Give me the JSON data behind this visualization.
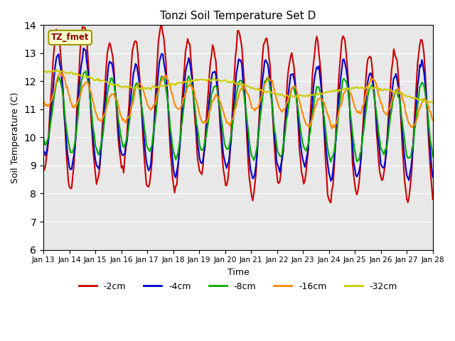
{
  "title": "Tonzi Soil Temperature Set D",
  "xlabel": "Time",
  "ylabel": "Soil Temperature (C)",
  "ylim": [
    6.0,
    14.0
  ],
  "yticks": [
    6.0,
    7.0,
    8.0,
    9.0,
    10.0,
    11.0,
    12.0,
    13.0,
    14.0
  ],
  "bg_color": "#e8e8e8",
  "legend_label": "TZ_fmet",
  "series_names": [
    "-2cm",
    "-4cm",
    "-8cm",
    "-16cm",
    "-32cm"
  ],
  "series_colors": [
    "#cc0000",
    "#0000cc",
    "#00aa00",
    "#ff8800",
    "#cccc00"
  ],
  "series_lw": [
    1.5,
    1.5,
    1.5,
    1.5,
    1.5
  ],
  "xtick_labels": [
    "Jan 13",
    "Jan 14",
    "Jan 15",
    "Jan 16",
    "Jan 17",
    "Jan 18",
    "Jan 19",
    "Jan 20",
    "Jan 21",
    "Jan 22",
    "Jan 23",
    "Jan 24",
    "Jan 25",
    "Jan 26",
    "Jan 27",
    "Jan 28"
  ],
  "n_days": 15,
  "pts_per_day": 24
}
